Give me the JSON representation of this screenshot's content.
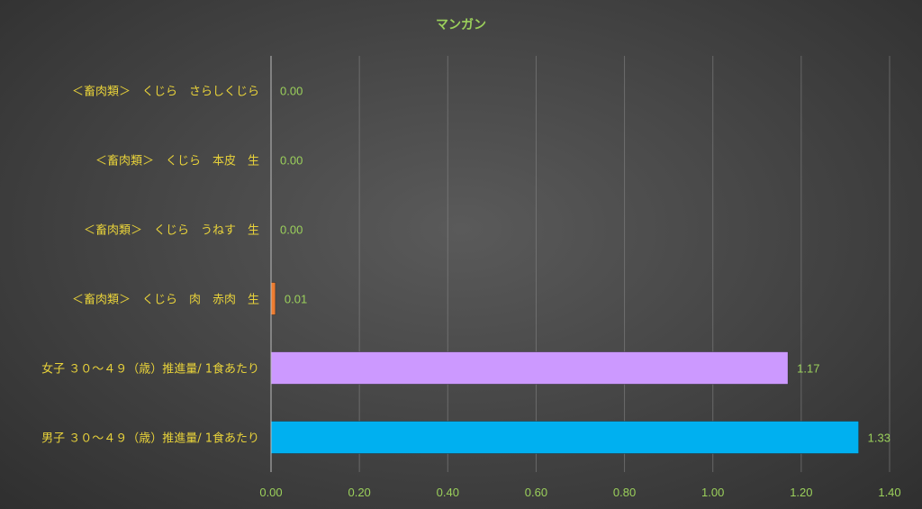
{
  "chart_data": {
    "type": "bar",
    "orientation": "horizontal",
    "title": "マンガン",
    "categories": [
      "＜畜肉類＞　くじら　さらしくじら",
      "＜畜肉類＞　くじら　本皮　生",
      "＜畜肉類＞　くじら　うねす　生",
      "＜畜肉類＞　くじら　肉　赤肉　生",
      "女子 ３０～４９（歳）推進量/ 1食あたり",
      "男子 ３０～４９（歳）推進量/ 1食あたり"
    ],
    "values": [
      0.0,
      0.0,
      0.0,
      0.01,
      1.17,
      1.33
    ],
    "value_labels": [
      "0.00",
      "0.00",
      "0.00",
      "0.01",
      "1.17",
      "1.33"
    ],
    "bar_colors": [
      "#b5b5b5",
      "#b5b5b5",
      "#b5b5b5",
      "#ed7d31",
      "#cc99ff",
      "#00b0f0"
    ],
    "xlim": [
      0,
      1.4
    ],
    "x_ticks": [
      "0.00",
      "0.20",
      "0.40",
      "0.60",
      "0.80",
      "1.00",
      "1.20",
      "1.40"
    ],
    "grid": true,
    "xlabel": "",
    "ylabel": ""
  }
}
